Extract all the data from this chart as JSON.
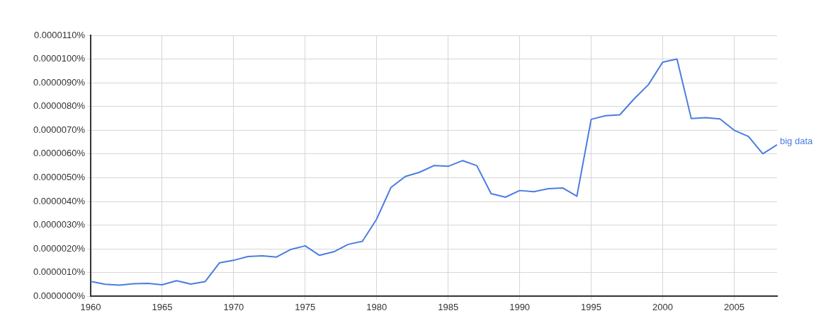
{
  "chart_data": {
    "type": "line",
    "x": [
      1960,
      1961,
      1962,
      1963,
      1964,
      1965,
      1966,
      1967,
      1968,
      1969,
      1970,
      1971,
      1972,
      1973,
      1974,
      1975,
      1976,
      1977,
      1978,
      1979,
      1980,
      1981,
      1982,
      1983,
      1984,
      1985,
      1986,
      1987,
      1988,
      1989,
      1990,
      1991,
      1992,
      1993,
      1994,
      1995,
      1996,
      1997,
      1998,
      1999,
      2000,
      2001,
      2002,
      2003,
      2004,
      2005,
      2006,
      2007,
      2008
    ],
    "series": [
      {
        "name": "big data",
        "color": "#4a7de0",
        "values": [
          6.3e-07,
          5.1e-07,
          4.7e-07,
          5.3e-07,
          5.5e-07,
          4.9e-07,
          6.6e-07,
          5.2e-07,
          6.2e-07,
          1.41e-06,
          1.52e-06,
          1.68e-06,
          1.71e-06,
          1.66e-06,
          1.98e-06,
          2.13e-06,
          1.73e-06,
          1.88e-06,
          2.19e-06,
          2.32e-06,
          3.26e-06,
          4.59e-06,
          5.05e-06,
          5.23e-06,
          5.51e-06,
          5.48e-06,
          5.72e-06,
          5.51e-06,
          4.33e-06,
          4.18e-06,
          4.46e-06,
          4.41e-06,
          4.54e-06,
          4.57e-06,
          4.22e-06,
          7.46e-06,
          7.61e-06,
          7.65e-06,
          8.32e-06,
          8.92e-06,
          9.87e-06,
          1e-05,
          7.49e-06,
          7.53e-06,
          7.48e-06,
          7e-06,
          6.74e-06,
          6.01e-06,
          6.39e-06
        ]
      }
    ],
    "xlim": [
      1960,
      2008
    ],
    "xticks": [
      1960,
      1965,
      1970,
      1975,
      1980,
      1985,
      1990,
      1995,
      2000,
      2005
    ],
    "ylim": [
      0,
      1.1e-05
    ],
    "yticks": [
      {
        "value": 0,
        "label": "0.0000000%"
      },
      {
        "value": 1e-06,
        "label": "0.0000010%"
      },
      {
        "value": 2e-06,
        "label": "0.0000020%"
      },
      {
        "value": 3e-06,
        "label": "0.0000030%"
      },
      {
        "value": 4e-06,
        "label": "0.0000040%"
      },
      {
        "value": 5e-06,
        "label": "0.0000050%"
      },
      {
        "value": 6e-06,
        "label": "0.0000060%"
      },
      {
        "value": 7e-06,
        "label": "0.0000070%"
      },
      {
        "value": 8e-06,
        "label": "0.0000080%"
      },
      {
        "value": 9e-06,
        "label": "0.0000090%"
      },
      {
        "value": 1e-05,
        "label": "0.0000100%"
      },
      {
        "value": 1.1e-05,
        "label": "0.0000110%"
      }
    ],
    "grid": true,
    "legend": false,
    "marker": "none",
    "line_style": "solid"
  }
}
